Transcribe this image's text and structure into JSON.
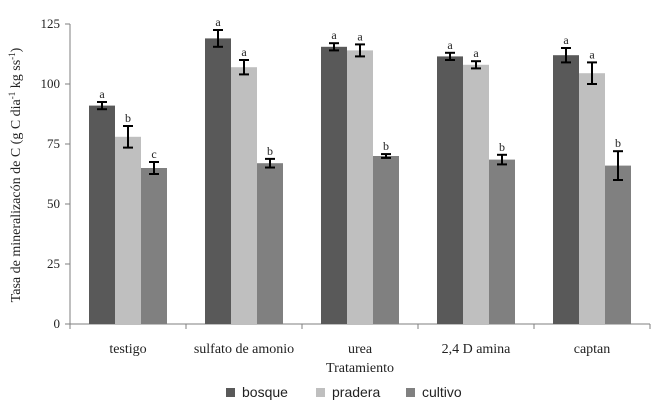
{
  "chart_data": {
    "type": "bar",
    "title": "",
    "xlabel": "Tratamiento",
    "ylabel": "Tasa de mineralizacón de C (g C dia-1 kg ss-1)",
    "ylabel_parts": {
      "prefix": "Tasa de mineralizacón  de C (g C dia",
      "sup1": "-1",
      "middle": " kg ss",
      "sup2": "-1",
      "suffix": ")"
    },
    "ylim": [
      0,
      125
    ],
    "yticks": [
      0,
      25,
      50,
      75,
      100,
      125
    ],
    "categories": [
      "testigo",
      "sulfato de amonio",
      "urea",
      "2,4 D amina",
      "captan"
    ],
    "series": [
      {
        "name": "bosque",
        "color": "#595959",
        "values": [
          91,
          119,
          115.5,
          111.5,
          112
        ],
        "errors": [
          1.5,
          3.5,
          1.5,
          1.5,
          3
        ],
        "letters": [
          "a",
          "a",
          "a",
          "a",
          "a"
        ]
      },
      {
        "name": "pradera",
        "color": "#bfbfbf",
        "values": [
          78,
          107,
          114,
          108,
          104.5
        ],
        "errors": [
          4.5,
          3,
          2.5,
          1.5,
          4.5
        ],
        "letters": [
          "b",
          "a",
          "a",
          "a",
          "a"
        ]
      },
      {
        "name": "cultivo",
        "color": "#808080",
        "values": [
          65,
          67,
          70,
          68.5,
          66
        ],
        "errors": [
          2.5,
          1.8,
          0.8,
          2,
          6
        ],
        "letters": [
          "c",
          "b",
          "b",
          "b",
          "b"
        ]
      }
    ],
    "legend": {
      "position": "bottom",
      "entries": [
        "bosque",
        "pradera",
        "cultivo"
      ]
    },
    "grid": false
  }
}
